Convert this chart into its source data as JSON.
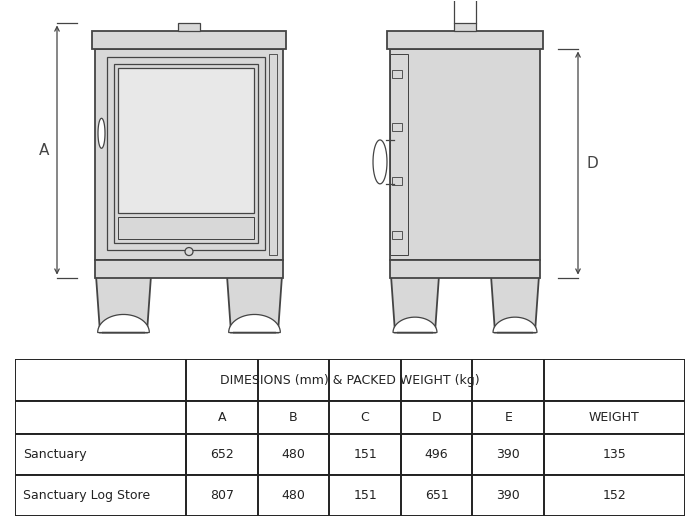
{
  "bg_color": "#ffffff",
  "table_header": "DIMESIONS (mm) & PACKED WEIGHT (kg)",
  "col_labels": [
    "",
    "A",
    "B",
    "C",
    "D",
    "E",
    "WEIGHT"
  ],
  "rows": [
    [
      "Sanctuary",
      "652",
      "480",
      "151",
      "496",
      "390",
      "135"
    ],
    [
      "Sanctuary Log Store",
      "807",
      "480",
      "151",
      "651",
      "390",
      "152"
    ]
  ],
  "line_color": "#444444",
  "stove_fill": "#d8d8d8",
  "stove_edge": "#444444",
  "glass_fill": "#e8e8e8",
  "white_fill": "#ffffff"
}
